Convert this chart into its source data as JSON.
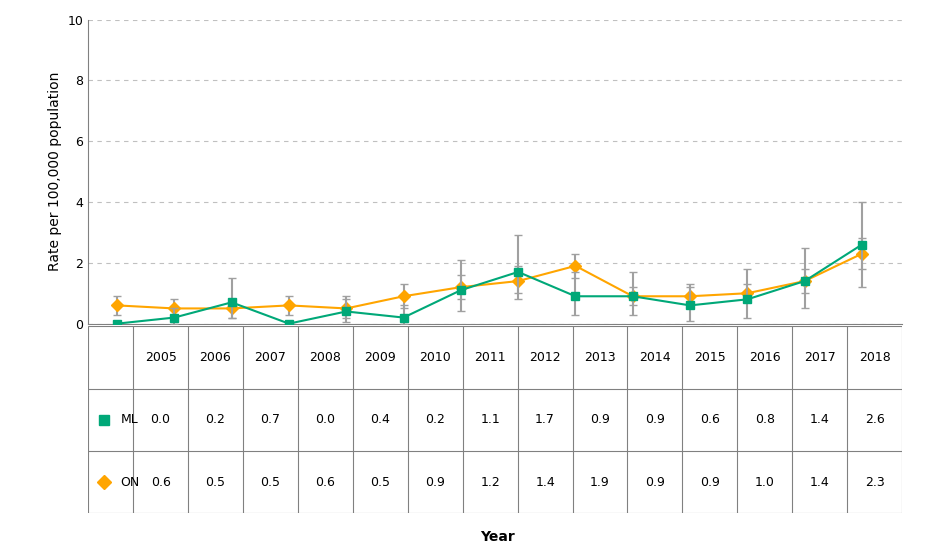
{
  "years": [
    2005,
    2006,
    2007,
    2008,
    2009,
    2010,
    2011,
    2012,
    2013,
    2014,
    2015,
    2016,
    2017,
    2018
  ],
  "ML_values": [
    0.0,
    0.2,
    0.7,
    0.0,
    0.4,
    0.2,
    1.1,
    1.7,
    0.9,
    0.9,
    0.6,
    0.8,
    1.4,
    2.6
  ],
  "ON_values": [
    0.6,
    0.5,
    0.5,
    0.6,
    0.5,
    0.9,
    1.2,
    1.4,
    1.9,
    0.9,
    0.9,
    1.0,
    1.4,
    2.3
  ],
  "ML_err_lower": [
    0.0,
    0.0,
    0.2,
    0.0,
    0.05,
    0.0,
    0.4,
    0.8,
    0.3,
    0.3,
    0.1,
    0.2,
    0.5,
    1.2
  ],
  "ML_err_upper": [
    0.1,
    0.5,
    1.5,
    0.1,
    0.9,
    0.6,
    2.1,
    2.9,
    1.7,
    1.7,
    1.3,
    1.8,
    2.5,
    4.0
  ],
  "ON_err_lower": [
    0.3,
    0.2,
    0.2,
    0.3,
    0.2,
    0.5,
    0.8,
    1.0,
    1.5,
    0.6,
    0.6,
    0.7,
    1.0,
    1.8
  ],
  "ON_err_upper": [
    0.9,
    0.8,
    0.8,
    0.9,
    0.8,
    1.3,
    1.6,
    1.9,
    2.3,
    1.2,
    1.2,
    1.3,
    1.8,
    2.8
  ],
  "ML_color": "#00A878",
  "ON_color": "#FFA500",
  "ML_label": "ML",
  "ON_label": "ON",
  "ylabel": "Rate per 100,000 population",
  "xlabel": "Year",
  "ylim": [
    0,
    10
  ],
  "yticks": [
    0,
    2,
    4,
    6,
    8,
    10
  ],
  "grid_color": "#c0c0c0",
  "err_color": "#a0a0a0"
}
